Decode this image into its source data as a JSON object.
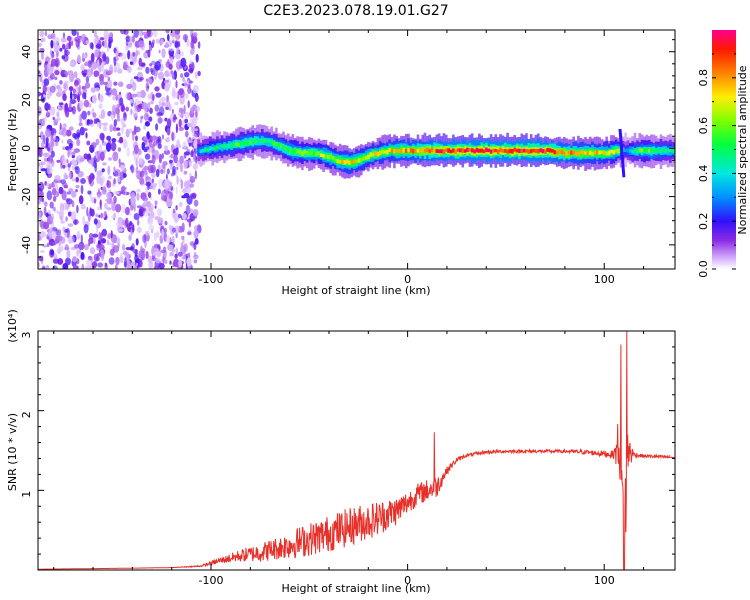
{
  "figure": {
    "title": "C2E3.2023.078.19.01.G27"
  },
  "chart_data": [
    {
      "type": "heatmap",
      "name": "spectrogram",
      "title": "C2E3.2023.078.19.01.G27",
      "xlabel": "Height of straight line (km)",
      "ylabel": "Frequency (Hz)",
      "xlim": [
        -188,
        136
      ],
      "ylim": [
        -50,
        49
      ],
      "x_ticks": [
        -100,
        0,
        100
      ],
      "x_tick_labels": [
        "-100",
        "0",
        "100"
      ],
      "y_ticks": [
        -40,
        -20,
        0,
        20,
        40
      ],
      "y_tick_labels": [
        "-40",
        "-20",
        "0",
        "20",
        "40"
      ],
      "colorbar": {
        "label": "Normalized spectral amplitude",
        "range": [
          0.0,
          1.0
        ],
        "ticks": [
          0.0,
          0.2,
          0.4,
          0.6,
          0.8
        ],
        "tick_labels": [
          "0.0",
          "0.2",
          "0.4",
          "0.6",
          "0.8"
        ]
      },
      "noise_region_x": [
        -188,
        -106
      ],
      "signal_track": {
        "x": [
          -107,
          -100,
          -92,
          -85,
          -78,
          -72,
          -66,
          -60,
          -54,
          -48,
          -42,
          -36,
          -30,
          -25,
          -20,
          -15,
          -10,
          -5,
          0,
          5,
          10,
          20,
          30,
          40,
          50,
          60,
          70,
          80,
          90,
          100,
          106,
          110,
          115,
          120,
          125,
          130,
          136
        ],
        "y": [
          -1,
          0,
          1,
          2,
          3,
          3,
          1,
          -1,
          -2,
          -2,
          -3,
          -5,
          -6,
          -5,
          -3,
          -2,
          -1,
          -1,
          -1,
          -1,
          -1,
          -1,
          -1,
          -1,
          -1,
          -1,
          -1,
          -2,
          -2,
          -2,
          -1,
          -1,
          -1,
          -1,
          -1,
          -1,
          -1
        ],
        "amplitude": [
          0.35,
          0.45,
          0.5,
          0.55,
          0.55,
          0.5,
          0.55,
          0.6,
          0.6,
          0.62,
          0.65,
          0.7,
          0.72,
          0.7,
          0.68,
          0.7,
          0.72,
          0.75,
          0.78,
          0.8,
          0.85,
          0.9,
          0.92,
          0.93,
          0.93,
          0.92,
          0.9,
          0.8,
          0.75,
          0.7,
          0.65,
          0.3,
          0.5,
          0.6,
          0.55,
          0.5,
          0.45
        ]
      }
    },
    {
      "type": "line",
      "name": "snr",
      "xlabel": "Height of straight line (km)",
      "ylabel": "SNR (10 * v/v)",
      "y_scale_note": "(x10⁴)",
      "xlim": [
        -188,
        136
      ],
      "ylim": [
        0,
        3
      ],
      "x_ticks": [
        -100,
        0,
        100
      ],
      "x_tick_labels": [
        "-100",
        "0",
        "100"
      ],
      "y_ticks": [
        1,
        2,
        3
      ],
      "y_tick_labels": [
        "1",
        "2",
        "3"
      ],
      "series": [
        {
          "color": "#e8302a",
          "x": [
            -188,
            -150,
            -120,
            -105,
            -95,
            -85,
            -75,
            -65,
            -55,
            -45,
            -35,
            -25,
            -15,
            -5,
            0,
            5,
            10,
            15,
            20,
            25,
            30,
            40,
            50,
            60,
            70,
            80,
            90,
            100,
            105,
            108,
            110,
            112,
            115,
            120,
            130,
            136
          ],
          "y": [
            0.01,
            0.02,
            0.03,
            0.05,
            0.12,
            0.18,
            0.22,
            0.28,
            0.35,
            0.42,
            0.5,
            0.58,
            0.65,
            0.75,
            0.85,
            0.95,
            1.0,
            1.05,
            1.25,
            1.38,
            1.44,
            1.48,
            1.49,
            1.49,
            1.49,
            1.49,
            1.48,
            1.46,
            1.45,
            1.6,
            0.3,
            1.5,
            1.45,
            1.43,
            1.42,
            1.41
          ],
          "noise": [
            0,
            0,
            0,
            0.01,
            0.04,
            0.08,
            0.12,
            0.15,
            0.2,
            0.22,
            0.24,
            0.24,
            0.22,
            0.18,
            0.15,
            0.14,
            0.14,
            0.14,
            0.05,
            0.03,
            0.02,
            0.02,
            0.02,
            0.02,
            0.02,
            0.02,
            0.03,
            0.04,
            0.05,
            0.5,
            0.9,
            0.3,
            0.04,
            0.02,
            0.02,
            0.02
          ],
          "peaks": [
            {
              "x": 13.5,
              "y": 1.73
            },
            {
              "x": 108.5,
              "y": 2.83
            },
            {
              "x": 111.5,
              "y": 3.0
            },
            {
              "x": 110.3,
              "y": 0.0
            }
          ]
        }
      ]
    }
  ]
}
